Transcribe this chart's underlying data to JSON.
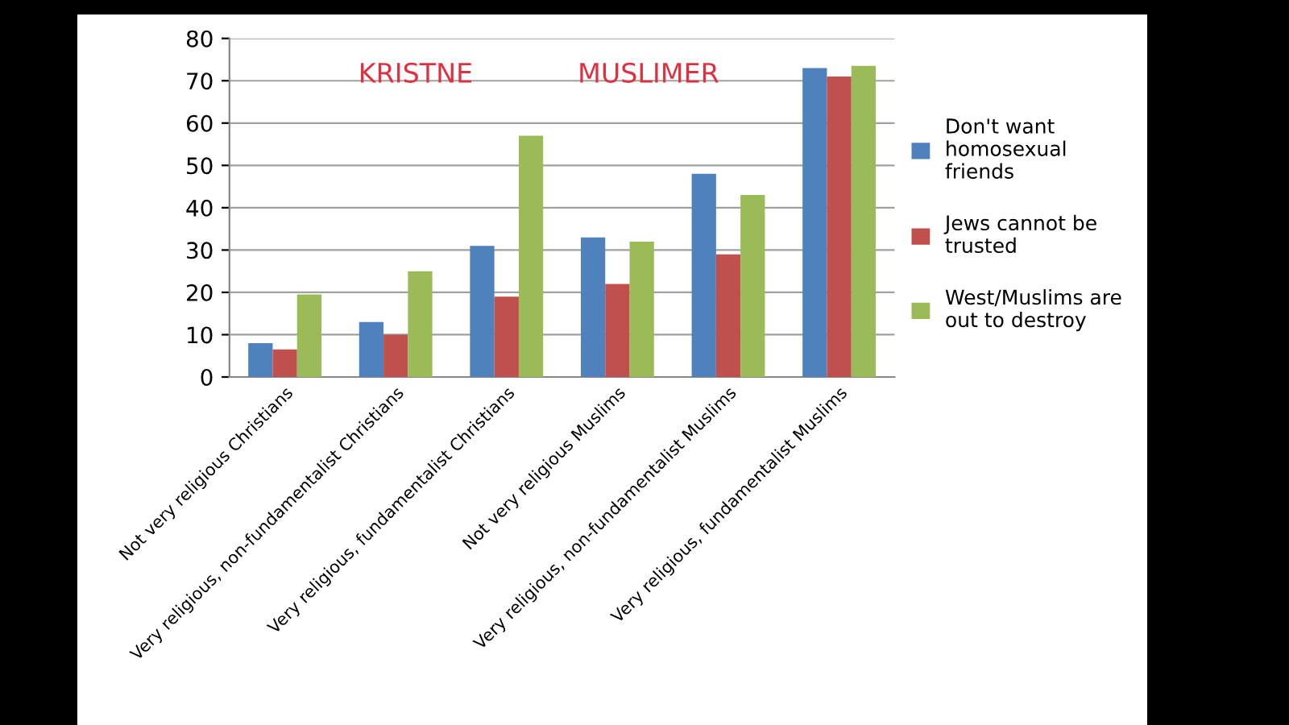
{
  "chart_data": {
    "type": "bar",
    "categories": [
      "Not very religious Christians",
      "Very religious, non-fundamentalist Christians",
      "Very religious, fundamentalist Christians",
      "Not very religious Muslims",
      "Very religious, non-fundamentalist Muslims",
      "Very religious, fundamentalist Muslims"
    ],
    "series": [
      {
        "name": "Don't want homosexual friends",
        "color": "#4f81bd",
        "values": [
          8,
          13,
          31,
          33,
          48,
          73
        ]
      },
      {
        "name": "Jews cannot be trusted",
        "color": "#c0504d",
        "values": [
          6.5,
          10,
          19,
          22,
          29,
          71
        ]
      },
      {
        "name": "West/Muslims are out to destroy",
        "color": "#9bbb59",
        "values": [
          19.5,
          25,
          57,
          32,
          43,
          73.5
        ]
      }
    ],
    "ylim": [
      0,
      80
    ],
    "yticks": [
      0,
      10,
      20,
      30,
      40,
      50,
      60,
      70,
      80
    ],
    "grid": "y",
    "legend": "right",
    "annotations": [
      "KRISTNE",
      "MUSLIMER"
    ]
  }
}
